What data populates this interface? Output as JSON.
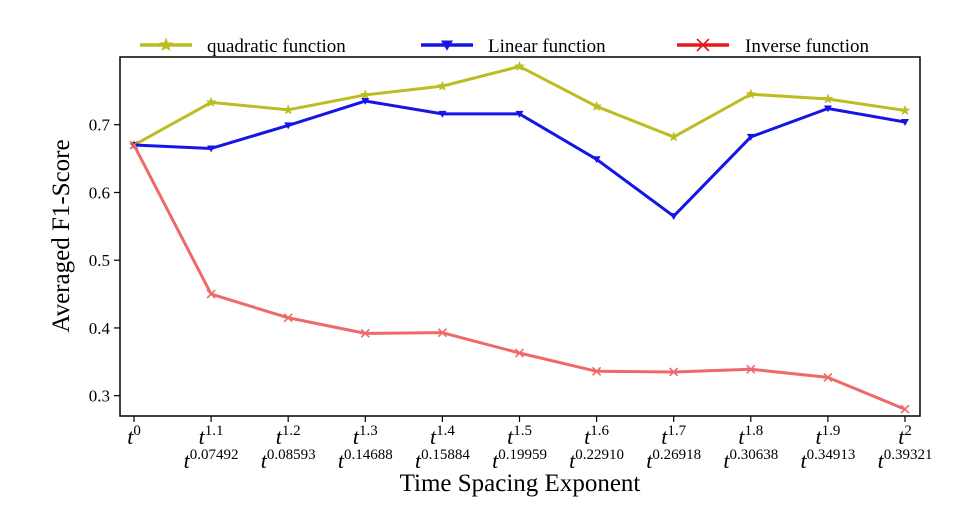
{
  "chart_data": {
    "type": "line",
    "xlabel": "Time Spacing Exponent",
    "ylabel": "Averaged F1-Score",
    "x_ticks": [
      {
        "top_exp": "0",
        "bottom_exp": ""
      },
      {
        "top_exp": "1.1",
        "bottom_exp": "0.07492"
      },
      {
        "top_exp": "1.2",
        "bottom_exp": "0.08593"
      },
      {
        "top_exp": "1.3",
        "bottom_exp": "0.14688"
      },
      {
        "top_exp": "1.4",
        "bottom_exp": "0.15884"
      },
      {
        "top_exp": "1.5",
        "bottom_exp": "0.19959"
      },
      {
        "top_exp": "1.6",
        "bottom_exp": "0.22910"
      },
      {
        "top_exp": "1.7",
        "bottom_exp": "0.26918"
      },
      {
        "top_exp": "1.8",
        "bottom_exp": "0.30638"
      },
      {
        "top_exp": "1.9",
        "bottom_exp": "0.34913"
      },
      {
        "top_exp": "2",
        "bottom_exp": "0.39321"
      }
    ],
    "tick_base": "t",
    "yticks": [
      "0.3",
      "0.4",
      "0.5",
      "0.6",
      "0.7"
    ],
    "ylim": [
      0.27,
      0.8
    ],
    "legend_position": "top",
    "series": [
      {
        "name": "quadratic function",
        "color": "#bcbd22",
        "marker": "star",
        "values": [
          0.67,
          0.733,
          0.722,
          0.744,
          0.757,
          0.786,
          0.727,
          0.682,
          0.745,
          0.738,
          0.721
        ]
      },
      {
        "name": "Linear function",
        "color": "#1515e6",
        "marker": "triangle-down",
        "values": [
          0.67,
          0.665,
          0.699,
          0.735,
          0.716,
          0.716,
          0.649,
          0.565,
          0.682,
          0.724,
          0.704
        ]
      },
      {
        "name": "Inverse function",
        "color": "#ee6a6a",
        "legend_color": "#e41a1c",
        "marker": "x",
        "values": [
          0.67,
          0.45,
          0.415,
          0.392,
          0.393,
          0.363,
          0.336,
          0.335,
          0.339,
          0.327,
          0.28
        ]
      }
    ]
  }
}
